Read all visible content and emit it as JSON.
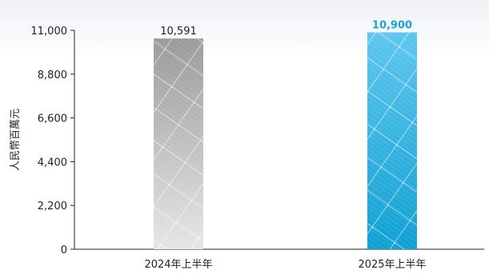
{
  "chart_data": {
    "type": "bar",
    "categories": [
      "2024年上半年",
      "2025年上半年"
    ],
    "values": [
      10591,
      10900
    ],
    "value_labels": [
      "10,591",
      "10,900"
    ],
    "ylabel": "人民幣百萬元",
    "ylim": [
      0,
      11000
    ],
    "yticks": [
      0,
      2200,
      4400,
      6600,
      8800,
      11000
    ],
    "ytick_labels": [
      "0",
      "2,200",
      "4,400",
      "6,600",
      "8,800",
      "11,000"
    ],
    "grid": false,
    "colors": {
      "bar_2024_top": "#9a9a9a",
      "bar_2024_bottom": "#e6e6e6",
      "bar_2025_top": "#5ec6ee",
      "bar_2025_bottom": "#0fa0d2",
      "label_2024": "#222222",
      "label_2025": "#1aa3d9",
      "axis": "#222222"
    },
    "pattern": "solar-panel-grid"
  }
}
